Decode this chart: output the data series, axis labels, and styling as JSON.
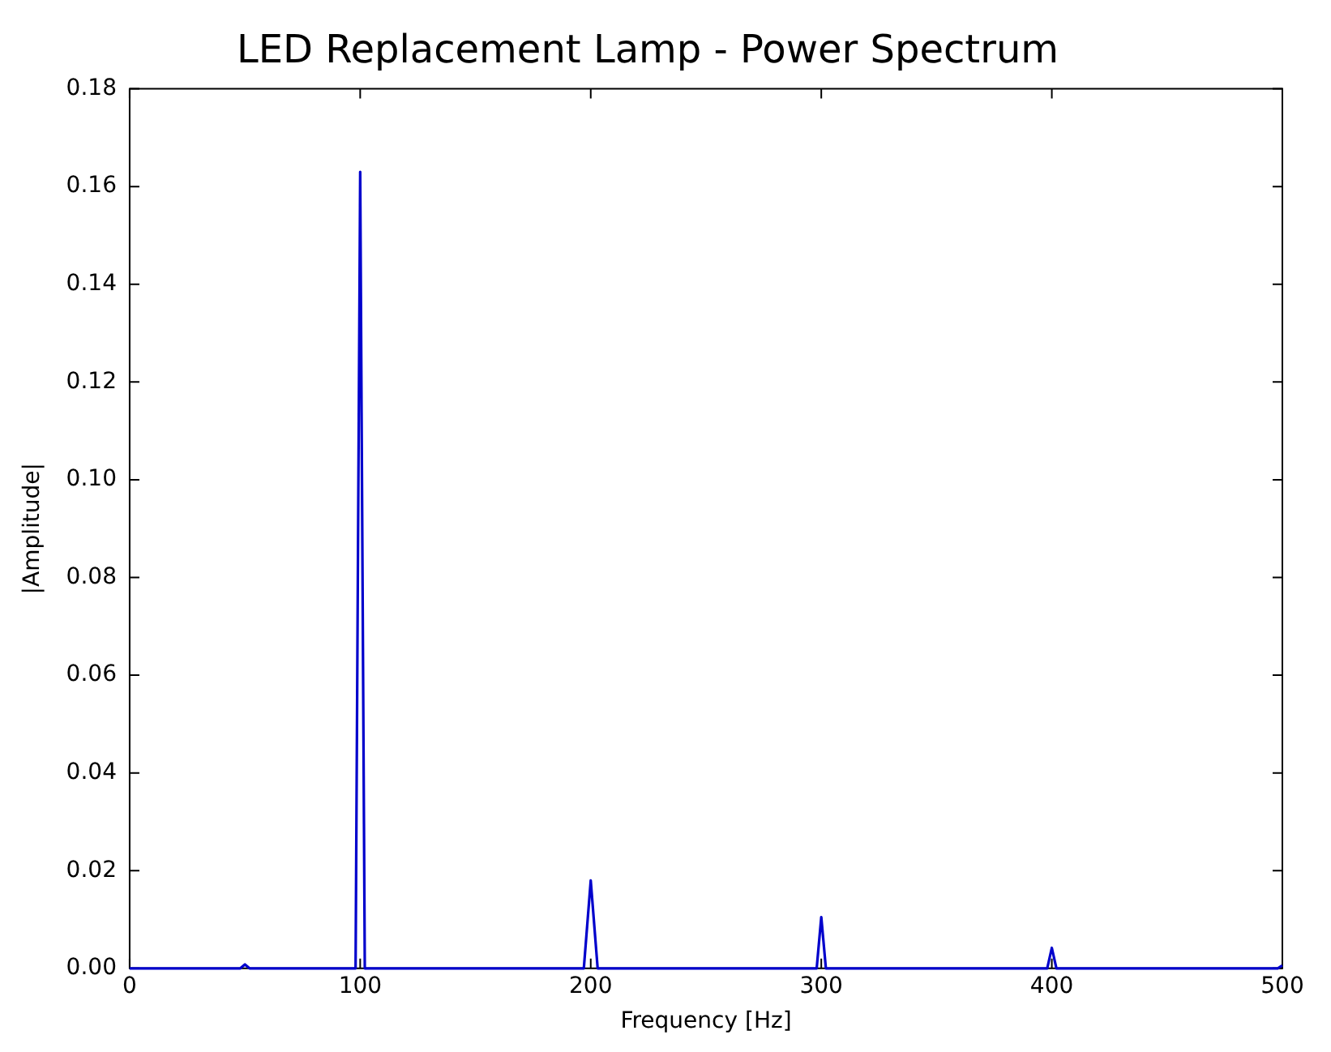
{
  "chart_data": {
    "type": "line",
    "title": "LED Replacement Lamp - Power Spectrum",
    "xlabel": "Frequency [Hz]",
    "ylabel": "|Amplitude|",
    "x": [
      0,
      48,
      50,
      52,
      98,
      100,
      102,
      197,
      200,
      203,
      298,
      300,
      302,
      398,
      400,
      402,
      498,
      500
    ],
    "series": [
      {
        "color": "#0000cc",
        "values": [
          0,
          0,
          0.0008,
          0,
          0,
          0.163,
          0,
          0,
          0.018,
          0,
          0,
          0.0105,
          0,
          0,
          0.0042,
          0,
          0,
          0.0006
        ]
      }
    ],
    "xlim": [
      0,
      500
    ],
    "xticks": [
      0,
      100,
      200,
      300,
      400,
      500
    ],
    "ylim": [
      0,
      0.18
    ],
    "yticks": [
      {
        "value": 0,
        "label": "0.00"
      },
      {
        "value": 0.02,
        "label": "0.02"
      },
      {
        "value": 0.04,
        "label": "0.04"
      },
      {
        "value": 0.06,
        "label": "0.06"
      },
      {
        "value": 0.08,
        "label": "0.08"
      },
      {
        "value": 0.1,
        "label": "0.10"
      },
      {
        "value": 0.12,
        "label": "0.12"
      },
      {
        "value": 0.14,
        "label": "0.14"
      },
      {
        "value": 0.16,
        "label": "0.16"
      },
      {
        "value": 0.18,
        "label": "0.18"
      }
    ],
    "grid": false,
    "legend": false,
    "marker": "none",
    "line_style": "solid"
  }
}
